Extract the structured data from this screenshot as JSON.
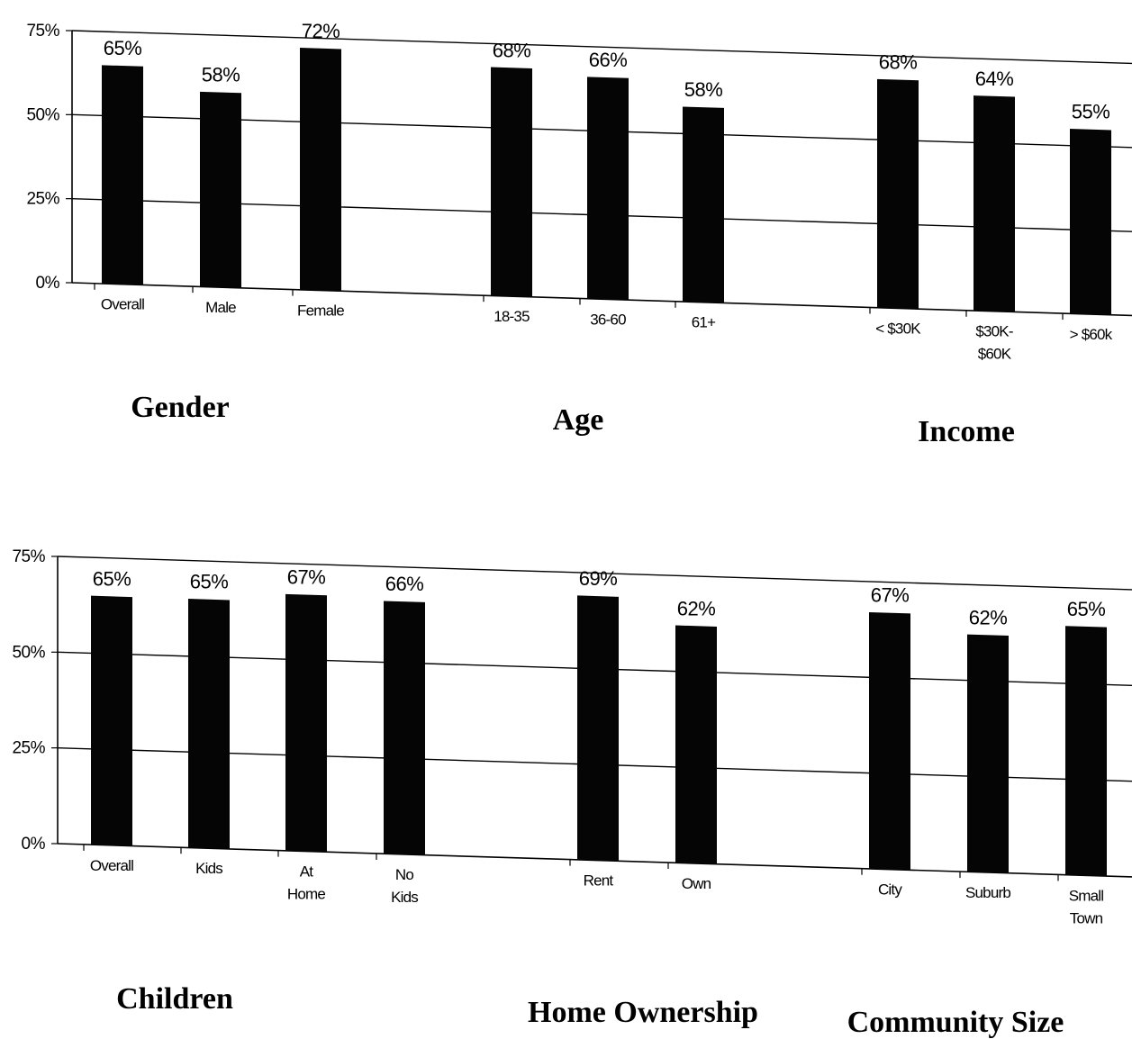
{
  "chart_data": [
    {
      "type": "bar",
      "ylim": [
        0,
        75
      ],
      "yticks": [
        "0%",
        "25%",
        "50%",
        "75%"
      ],
      "grid": true,
      "groups": [
        {
          "label": "Gender",
          "categories": [
            [
              "Overall"
            ],
            [
              "Male"
            ],
            [
              "Female"
            ]
          ],
          "values": [
            65,
            58,
            72
          ],
          "value_labels": [
            "65%",
            "58%",
            "72%"
          ]
        },
        {
          "label": "Age",
          "categories": [
            [
              "18-35"
            ],
            [
              "36-60"
            ],
            [
              "61+"
            ]
          ],
          "values": [
            68,
            66,
            58
          ],
          "value_labels": [
            "68%",
            "66%",
            "58%"
          ]
        },
        {
          "label": "Income",
          "categories": [
            [
              "< $30K"
            ],
            [
              "$30K-",
              "$60K"
            ],
            [
              "> $60k"
            ]
          ],
          "values": [
            68,
            64,
            55
          ],
          "value_labels": [
            "68%",
            "64%",
            "55%"
          ]
        }
      ]
    },
    {
      "type": "bar",
      "ylim": [
        0,
        75
      ],
      "yticks": [
        "0%",
        "25%",
        "50%",
        "75%"
      ],
      "grid": true,
      "groups": [
        {
          "label": "Children",
          "categories": [
            [
              "Overall"
            ],
            [
              "Kids"
            ],
            [
              "At",
              "Home"
            ],
            [
              "No",
              "Kids"
            ]
          ],
          "values": [
            65,
            65,
            67,
            66
          ],
          "value_labels": [
            "65%",
            "65%",
            "67%",
            "66%"
          ]
        },
        {
          "label": "Home Ownership",
          "categories": [
            [
              "Rent"
            ],
            [
              "Own"
            ]
          ],
          "values": [
            69,
            62
          ],
          "value_labels": [
            "69%",
            "62%"
          ]
        },
        {
          "label": "Community Size",
          "categories": [
            [
              "City"
            ],
            [
              "Suburb"
            ],
            [
              "Small",
              "Town"
            ]
          ],
          "values": [
            67,
            62,
            65
          ],
          "value_labels": [
            "67%",
            "62%",
            "65%"
          ]
        }
      ]
    }
  ]
}
